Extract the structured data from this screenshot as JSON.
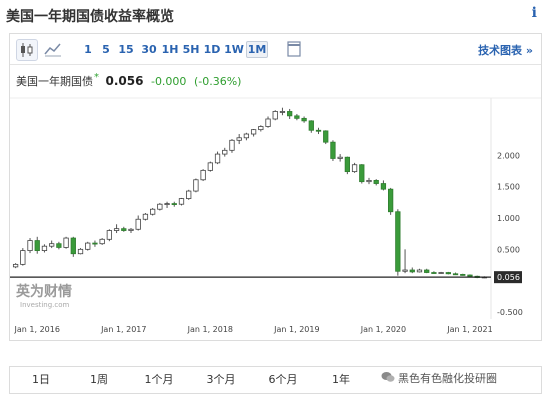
{
  "page": {
    "title": "美国一年期国债收益率概览",
    "info_icon": "i"
  },
  "toolbar": {
    "chart_type_icons": [
      "candlestick-icon",
      "area-chart-icon"
    ],
    "intervals": [
      "1",
      "5",
      "15",
      "30",
      "1H",
      "5H",
      "1D",
      "1W",
      "1M"
    ],
    "active_interval": "1M",
    "doc_icon": "document-icon",
    "tech_chart_label": "技术图表 »"
  },
  "quote": {
    "name": "美国一年期国债",
    "star": "*",
    "value": "0.056",
    "change": "-0.000",
    "change_pct": "(-0.36%)",
    "up_color": "#31a233",
    "down_color": "#3a9b3a"
  },
  "chart_data": {
    "type": "candlestick",
    "x_tick_labels": [
      "Jan 1, 2016",
      "Jan 1, 2017",
      "Jan 1, 2018",
      "Jan 1, 2019",
      "Jan 1, 2020",
      "Jan 1, 2021"
    ],
    "y_tick_labels": [
      "2.000",
      "1.500",
      "1.000",
      "0.500",
      "0.056",
      "-0.500"
    ],
    "ylim": [
      -0.5,
      2.5
    ],
    "last_value": 0.056,
    "logo_text": "英为财情",
    "logo_subtext": "Investing.com",
    "months": [
      "2015-10",
      "2015-11",
      "2015-12",
      "2016-01",
      "2016-02",
      "2016-03",
      "2016-04",
      "2016-05",
      "2016-06",
      "2016-07",
      "2016-08",
      "2016-09",
      "2016-10",
      "2016-11",
      "2016-12",
      "2017-01",
      "2017-02",
      "2017-03",
      "2017-04",
      "2017-05",
      "2017-06",
      "2017-07",
      "2017-08",
      "2017-09",
      "2017-10",
      "2017-11",
      "2017-12",
      "2018-01",
      "2018-02",
      "2018-03",
      "2018-04",
      "2018-05",
      "2018-06",
      "2018-07",
      "2018-08",
      "2018-09",
      "2018-10",
      "2018-11",
      "2018-12",
      "2019-01",
      "2019-02",
      "2019-03",
      "2019-04",
      "2019-05",
      "2019-06",
      "2019-07",
      "2019-08",
      "2019-09",
      "2019-10",
      "2019-11",
      "2019-12",
      "2020-01",
      "2020-02",
      "2020-03",
      "2020-04",
      "2020-05",
      "2020-06",
      "2020-07",
      "2020-08",
      "2020-09",
      "2020-10",
      "2020-11",
      "2020-12",
      "2021-01",
      "2021-02",
      "2021-03"
    ],
    "ohlc": [
      [
        0.22,
        0.28,
        0.2,
        0.26
      ],
      [
        0.26,
        0.52,
        0.24,
        0.48
      ],
      [
        0.48,
        0.68,
        0.44,
        0.64
      ],
      [
        0.64,
        0.7,
        0.43,
        0.48
      ],
      [
        0.48,
        0.58,
        0.45,
        0.55
      ],
      [
        0.55,
        0.64,
        0.52,
        0.59
      ],
      [
        0.59,
        0.62,
        0.5,
        0.53
      ],
      [
        0.53,
        0.7,
        0.51,
        0.68
      ],
      [
        0.68,
        0.7,
        0.38,
        0.43
      ],
      [
        0.43,
        0.52,
        0.42,
        0.5
      ],
      [
        0.5,
        0.62,
        0.48,
        0.6
      ],
      [
        0.6,
        0.64,
        0.54,
        0.59
      ],
      [
        0.59,
        0.68,
        0.57,
        0.66
      ],
      [
        0.66,
        0.82,
        0.63,
        0.8
      ],
      [
        0.8,
        0.9,
        0.76,
        0.83
      ],
      [
        0.83,
        0.86,
        0.78,
        0.8
      ],
      [
        0.8,
        0.84,
        0.76,
        0.82
      ],
      [
        0.82,
        1.04,
        0.8,
        0.98
      ],
      [
        0.98,
        1.08,
        0.96,
        1.06
      ],
      [
        1.06,
        1.16,
        1.04,
        1.14
      ],
      [
        1.14,
        1.24,
        1.12,
        1.22
      ],
      [
        1.22,
        1.26,
        1.16,
        1.23
      ],
      [
        1.23,
        1.26,
        1.18,
        1.22
      ],
      [
        1.22,
        1.32,
        1.2,
        1.31
      ],
      [
        1.31,
        1.45,
        1.29,
        1.43
      ],
      [
        1.43,
        1.63,
        1.41,
        1.61
      ],
      [
        1.61,
        1.78,
        1.59,
        1.76
      ],
      [
        1.76,
        1.9,
        1.74,
        1.88
      ],
      [
        1.88,
        2.06,
        1.86,
        2.02
      ],
      [
        2.02,
        2.12,
        1.98,
        2.08
      ],
      [
        2.08,
        2.26,
        2.04,
        2.24
      ],
      [
        2.24,
        2.34,
        2.18,
        2.28
      ],
      [
        2.28,
        2.36,
        2.24,
        2.34
      ],
      [
        2.34,
        2.42,
        2.3,
        2.41
      ],
      [
        2.41,
        2.48,
        2.38,
        2.46
      ],
      [
        2.46,
        2.62,
        2.44,
        2.58
      ],
      [
        2.58,
        2.72,
        2.56,
        2.7
      ],
      [
        2.7,
        2.76,
        2.64,
        2.7
      ],
      [
        2.7,
        2.74,
        2.58,
        2.63
      ],
      [
        2.63,
        2.66,
        2.56,
        2.59
      ],
      [
        2.59,
        2.62,
        2.52,
        2.55
      ],
      [
        2.55,
        2.56,
        2.36,
        2.4
      ],
      [
        2.4,
        2.44,
        2.34,
        2.39
      ],
      [
        2.39,
        2.4,
        2.18,
        2.21
      ],
      [
        2.21,
        2.24,
        1.91,
        1.95
      ],
      [
        1.95,
        2.02,
        1.9,
        1.97
      ],
      [
        1.97,
        1.98,
        1.7,
        1.74
      ],
      [
        1.74,
        1.88,
        1.72,
        1.85
      ],
      [
        1.85,
        1.86,
        1.55,
        1.58
      ],
      [
        1.58,
        1.64,
        1.54,
        1.6
      ],
      [
        1.6,
        1.62,
        1.52,
        1.55
      ],
      [
        1.55,
        1.6,
        1.44,
        1.46
      ],
      [
        1.46,
        1.48,
        1.05,
        1.1
      ],
      [
        1.1,
        1.14,
        0.08,
        0.15
      ],
      [
        0.15,
        0.5,
        0.12,
        0.17
      ],
      [
        0.17,
        0.21,
        0.12,
        0.14
      ],
      [
        0.14,
        0.19,
        0.13,
        0.17
      ],
      [
        0.17,
        0.19,
        0.12,
        0.13
      ],
      [
        0.13,
        0.15,
        0.11,
        0.12
      ],
      [
        0.12,
        0.14,
        0.11,
        0.13
      ],
      [
        0.13,
        0.14,
        0.1,
        0.11
      ],
      [
        0.11,
        0.13,
        0.09,
        0.1
      ],
      [
        0.1,
        0.11,
        0.08,
        0.09
      ],
      [
        0.09,
        0.1,
        0.06,
        0.07
      ],
      [
        0.07,
        0.08,
        0.04,
        0.05
      ],
      [
        0.05,
        0.07,
        0.04,
        0.06
      ]
    ],
    "colors": {
      "up": "#2f9e2f",
      "down": "#3b3b3b",
      "last_line": "#222222"
    }
  },
  "periods": [
    "1日",
    "1周",
    "1个月",
    "3个月",
    "6个月",
    "1年"
  ],
  "watermark": {
    "text": "黑色有色融化投研圈"
  }
}
